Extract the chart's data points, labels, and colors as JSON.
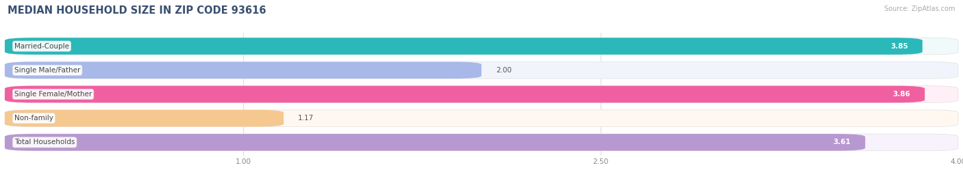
{
  "title": "MEDIAN HOUSEHOLD SIZE IN ZIP CODE 93616",
  "source": "Source: ZipAtlas.com",
  "categories": [
    "Married-Couple",
    "Single Male/Father",
    "Single Female/Mother",
    "Non-family",
    "Total Households"
  ],
  "values": [
    3.85,
    2.0,
    3.86,
    1.17,
    3.61
  ],
  "bar_colors": [
    "#2ab8b8",
    "#a8b8e8",
    "#f060a0",
    "#f5c890",
    "#b898d0"
  ],
  "bar_bg_colors": [
    "#f0fafa",
    "#f2f4fc",
    "#fef0f6",
    "#fef8f0",
    "#f8f2fc"
  ],
  "xlim": [
    0,
    4.0
  ],
  "xticks": [
    1.0,
    2.5,
    4.0
  ],
  "label_fontsize": 7.5,
  "value_fontsize": 7.5,
  "title_fontsize": 10.5,
  "bar_height": 0.7,
  "bar_gap": 0.3
}
